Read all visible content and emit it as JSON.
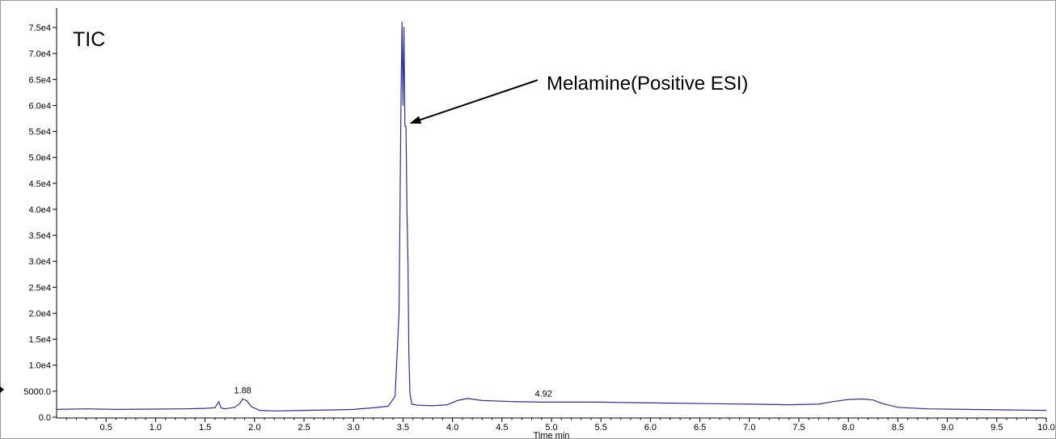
{
  "chart_data": {
    "type": "line",
    "title": "TIC",
    "xlabel": "Time min",
    "ylabel": "",
    "xlim": [
      0,
      10.0
    ],
    "ylim": [
      0,
      76000
    ],
    "grid": false,
    "x_ticks": [
      0.5,
      1.0,
      1.5,
      2.0,
      2.5,
      3.0,
      3.5,
      4.0,
      4.5,
      5.0,
      5.5,
      6.0,
      6.5,
      7.0,
      7.5,
      8.0,
      8.5,
      9.0,
      9.5,
      10.0
    ],
    "x_tick_labels": [
      "0.5",
      "1.0",
      "1.5",
      "2.0",
      "2.5",
      "3.0",
      "3.5",
      "4.0",
      "4.5",
      "5.0",
      "5.5",
      "6.0",
      "6.5",
      "7.0",
      "7.5",
      "8.0",
      "8.5",
      "9.0",
      "9.5",
      "10.0"
    ],
    "y_ticks": [
      0,
      5000,
      10000,
      15000,
      20000,
      25000,
      30000,
      35000,
      40000,
      45000,
      50000,
      55000,
      60000,
      65000,
      70000,
      75000
    ],
    "y_tick_labels": [
      "0.0",
      "5000.0",
      "1.0e4",
      "1.5e4",
      "2.0e4",
      "2.5e4",
      "3.0e4",
      "3.5e4",
      "4.0e4",
      "4.5e4",
      "5.0e4",
      "5.5e4",
      "6.0e4",
      "6.5e4",
      "7.0e4",
      "7.5e4"
    ],
    "series": [
      {
        "color": "#2b2f9a",
        "x": [
          0.0,
          0.3,
          0.6,
          1.0,
          1.3,
          1.5,
          1.6,
          1.64,
          1.66,
          1.7,
          1.8,
          1.85,
          1.88,
          1.92,
          1.97,
          2.05,
          2.2,
          2.5,
          2.8,
          3.0,
          3.2,
          3.35,
          3.42,
          3.46,
          3.48,
          3.49,
          3.5,
          3.51,
          3.52,
          3.53,
          3.54,
          3.55,
          3.56,
          3.57,
          3.59,
          3.65,
          3.8,
          3.95,
          4.05,
          4.15,
          4.3,
          4.6,
          4.92,
          5.2,
          5.5,
          5.8,
          6.2,
          6.6,
          7.0,
          7.4,
          7.7,
          7.85,
          8.0,
          8.15,
          8.25,
          8.35,
          8.5,
          8.8,
          9.2,
          9.6,
          10.0
        ],
        "y": [
          1500,
          1600,
          1500,
          1550,
          1600,
          1700,
          1800,
          3000,
          1800,
          1600,
          1900,
          2600,
          3500,
          3200,
          2000,
          1300,
          1200,
          1300,
          1400,
          1500,
          1800,
          2100,
          4000,
          20000,
          62000,
          76000,
          60000,
          75000,
          56000,
          56000,
          40000,
          30000,
          12000,
          4500,
          2500,
          2300,
          2200,
          2400,
          3200,
          3600,
          3200,
          3000,
          2900,
          2900,
          2900,
          2800,
          2700,
          2600,
          2500,
          2400,
          2500,
          3000,
          3400,
          3500,
          3300,
          2600,
          1900,
          1600,
          1500,
          1400,
          1300
        ]
      }
    ],
    "annotations": [
      {
        "text": "1.88",
        "x": 1.88,
        "y": 3500,
        "type": "peak-label"
      },
      {
        "text": "4.92",
        "x": 4.92,
        "y": 2900,
        "type": "peak-label"
      },
      {
        "text": "Melamine(Positive ESI)",
        "x": 3.54,
        "y": 56000,
        "type": "arrow-callout"
      }
    ]
  }
}
